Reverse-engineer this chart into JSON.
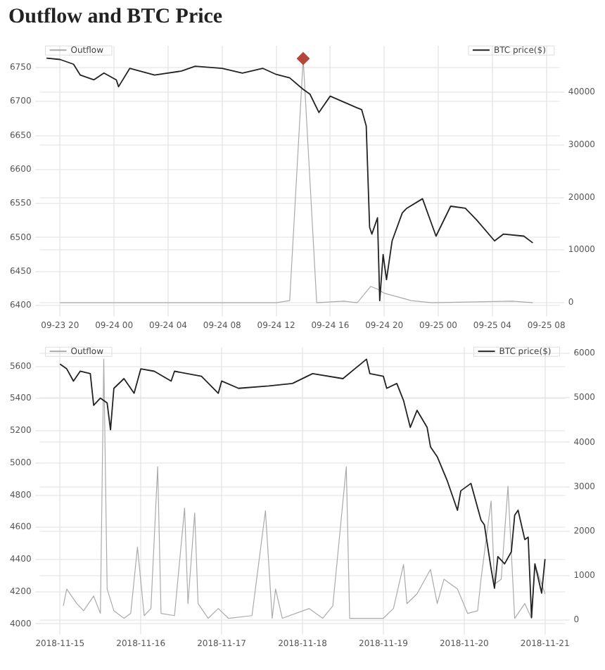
{
  "chart_data": [
    {
      "type": "line",
      "title": "Outflow and BTC Price",
      "legend": "top",
      "grid": true,
      "marker": "none",
      "line_style": "solid",
      "xlim": [
        "--09-23T18:30",
        "--09-25T09:00"
      ],
      "xticks": [
        {
          "value": "--09-23T20:00",
          "label": "09-23 20"
        },
        {
          "value": "--09-24T00:00",
          "label": "09-24 00"
        },
        {
          "value": "--09-24T04:00",
          "label": "09-24 04"
        },
        {
          "value": "--09-24T08:00",
          "label": "09-24 08"
        },
        {
          "value": "--09-24T12:00",
          "label": "09-24 12"
        },
        {
          "value": "--09-24T16:00",
          "label": "09-24 16"
        },
        {
          "value": "--09-24T20:00",
          "label": "09-24 20"
        },
        {
          "value": "--09-25T00:00",
          "label": "09-25 00"
        },
        {
          "value": "--09-25T04:00",
          "label": "09-25 04"
        },
        {
          "value": "--09-25T08:00",
          "label": "09-25 08"
        }
      ],
      "ylim": [
        6390,
        6782
      ],
      "yticks": [
        6400,
        6450,
        6500,
        6550,
        6600,
        6650,
        6700,
        6750
      ],
      "y2lim": [
        -1800,
        48800
      ],
      "y2ticks": [
        0,
        10000,
        20000,
        30000,
        40000
      ],
      "series": [
        {
          "name": "Outflow",
          "axis": "y2",
          "color": "#aaaaaa",
          "x": [
            "--09-23T20:00",
            "--09-24T12:00",
            "--09-24T13:00",
            "--09-24T14:00",
            "--09-24T15:00",
            "--09-24T17:00",
            "--09-24T18:00",
            "--09-24T19:00",
            "--09-24T19:30",
            "--09-24T20:00",
            "--09-24T22:00",
            "--09-24T23:30",
            "--09-25T05:30",
            "--09-25T07:00"
          ],
          "values": [
            0,
            0,
            400,
            46400,
            0,
            300,
            0,
            3100,
            2600,
            1800,
            400,
            0,
            300,
            0
          ]
        },
        {
          "name": "BTC price($)",
          "axis": "y",
          "color": "#222222",
          "x": [
            "--09-23T19:00",
            "--09-23T20:00",
            "--09-23T21:00",
            "--09-23T21:30",
            "--09-23T22:30",
            "--09-23T23:15",
            "--09-24T00:10",
            "--09-24T00:20",
            "--09-24T01:10",
            "--09-24T03:00",
            "--09-24T05:00",
            "--09-24T06:00",
            "--09-24T08:00",
            "--09-24T09:30",
            "--09-24T11:00",
            "--09-24T12:00",
            "--09-24T13:00",
            "--09-24T14:00",
            "--09-24T14:30",
            "--09-24T15:10",
            "--09-24T16:00",
            "--09-24T17:30",
            "--09-24T18:20",
            "--09-24T18:40",
            "--09-24T18:55",
            "--09-24T19:05",
            "--09-24T19:30",
            "--09-24T19:40",
            "--09-24T19:55",
            "--09-24T20:10",
            "--09-24T20:35",
            "--09-24T21:20",
            "--09-24T21:40",
            "--09-24T22:50",
            "--09-24T23:50",
            "--09-25T00:55",
            "--09-25T02:00",
            "--09-25T02:50",
            "--09-25T04:10",
            "--09-25T04:50",
            "--09-25T06:20",
            "--09-25T07:00"
          ],
          "values": [
            6764,
            6762,
            6755,
            6739,
            6732,
            6742,
            6732,
            6722,
            6749,
            6739,
            6745,
            6752,
            6749,
            6742,
            6749,
            6740,
            6735,
            6718,
            6711,
            6684,
            6708,
            6695,
            6688,
            6664,
            6515,
            6505,
            6529,
            6407,
            6475,
            6438,
            6495,
            6536,
            6543,
            6557,
            6502,
            6546,
            6543,
            6526,
            6495,
            6505,
            6502,
            6492
          ]
        },
        {
          "type": "scatter",
          "marker": "diamond",
          "axis": "y2",
          "color": "#b5473a",
          "x": [
            "--09-24T14:00"
          ],
          "values": [
            46400
          ]
        }
      ]
    },
    {
      "type": "line",
      "legend": "top",
      "grid": true,
      "marker": "none",
      "line_style": "solid",
      "xlim": [
        "2018-11-14T18:00",
        "2018-11-21T06:00"
      ],
      "xticks": [
        "2018-11-15",
        "2018-11-16",
        "2018-11-17",
        "2018-11-18",
        "2018-11-19",
        "2018-11-20",
        "2018-11-21"
      ],
      "ylim": [
        3960,
        5720
      ],
      "yticks": [
        4000,
        4200,
        4400,
        4600,
        4800,
        5000,
        5200,
        5400,
        5600
      ],
      "y2lim": [
        -230,
        6140
      ],
      "y2ticks": [
        0,
        1000,
        2000,
        3000,
        4000,
        5000,
        6000
      ],
      "series": [
        {
          "name": "Outflow",
          "axis": "y2",
          "color": "#aaaaaa",
          "x": [
            "2018-11-15T01:00",
            "2018-11-15T02:00",
            "2018-11-15T05:00",
            "2018-11-15T07:00",
            "2018-11-15T09:00",
            "2018-11-15T10:00",
            "2018-11-15T12:00",
            "2018-11-15T13:00",
            "2018-11-15T14:00",
            "2018-11-15T16:00",
            "2018-11-15T19:00",
            "2018-11-15T21:00",
            "2018-11-15T23:00",
            "2018-11-16T01:00",
            "2018-11-16T03:00",
            "2018-11-16T05:00",
            "2018-11-16T06:00",
            "2018-11-16T10:00",
            "2018-11-16T13:00",
            "2018-11-16T14:00",
            "2018-11-16T16:00",
            "2018-11-16T17:00",
            "2018-11-16T20:00",
            "2018-11-16T23:00",
            "2018-11-17T02:00",
            "2018-11-17T09:00",
            "2018-11-17T13:00",
            "2018-11-17T15:00",
            "2018-11-17T16:00",
            "2018-11-17T18:00",
            "2018-11-18T02:00",
            "2018-11-18T06:00",
            "2018-11-18T09:00",
            "2018-11-18T13:00",
            "2018-11-18T14:00",
            "2018-11-19T00:00",
            "2018-11-19T03:00",
            "2018-11-19T06:00",
            "2018-11-19T07:00",
            "2018-11-19T10:00",
            "2018-11-19T14:00",
            "2018-11-19T16:00",
            "2018-11-19T18:00",
            "2018-11-19T20:00",
            "2018-11-19T22:00",
            "2018-11-20T01:00",
            "2018-11-20T04:00",
            "2018-11-20T05:00",
            "2018-11-20T08:00",
            "2018-11-20T09:00",
            "2018-11-20T11:00",
            "2018-11-20T13:00",
            "2018-11-20T15:00",
            "2018-11-20T18:00",
            "2018-11-20T20:00",
            "2018-11-20T21:00",
            "2018-11-21T00:00"
          ],
          "values": [
            320,
            700,
            370,
            210,
            430,
            540,
            150,
            5870,
            700,
            210,
            40,
            150,
            1640,
            100,
            260,
            3450,
            150,
            100,
            2520,
            370,
            2410,
            370,
            40,
            260,
            40,
            100,
            2460,
            40,
            700,
            40,
            260,
            40,
            320,
            3450,
            40,
            40,
            260,
            1250,
            370,
            590,
            1140,
            370,
            920,
            810,
            700,
            150,
            210,
            920,
            2680,
            810,
            920,
            3010,
            40,
            370,
            40,
            1250,
            590
          ]
        },
        {
          "name": "BTC price($)",
          "axis": "y",
          "color": "#222222",
          "x": [
            "2018-11-15T00:00",
            "2018-11-15T02:00",
            "2018-11-15T04:00",
            "2018-11-15T06:00",
            "2018-11-15T09:00",
            "2018-11-15T10:00",
            "2018-11-15T12:00",
            "2018-11-15T14:00",
            "2018-11-15T15:00",
            "2018-11-15T16:00",
            "2018-11-15T19:00",
            "2018-11-15T22:00",
            "2018-11-16T00:00",
            "2018-11-16T04:00",
            "2018-11-16T09:00",
            "2018-11-16T10:00",
            "2018-11-16T18:00",
            "2018-11-16T23:00",
            "2018-11-17T00:00",
            "2018-11-17T05:00",
            "2018-11-17T14:00",
            "2018-11-17T21:00",
            "2018-11-18T03:00",
            "2018-11-18T12:00",
            "2018-11-18T19:00",
            "2018-11-18T20:00",
            "2018-11-19T00:00",
            "2018-11-19T01:00",
            "2018-11-19T04:00",
            "2018-11-19T06:00",
            "2018-11-19T08:00",
            "2018-11-19T10:00",
            "2018-11-19T13:00",
            "2018-11-19T14:00",
            "2018-11-19T16:00",
            "2018-11-19T19:00",
            "2018-11-19T22:00",
            "2018-11-19T23:00",
            "2018-11-20T02:00",
            "2018-11-20T03:00",
            "2018-11-20T05:00",
            "2018-11-20T06:00",
            "2018-11-20T08:00",
            "2018-11-20T09:00",
            "2018-11-20T10:00",
            "2018-11-20T12:00",
            "2018-11-20T14:00",
            "2018-11-20T15:00",
            "2018-11-20T16:00",
            "2018-11-20T18:00",
            "2018-11-20T19:00",
            "2018-11-20T20:00",
            "2018-11-20T21:00",
            "2018-11-20T23:00",
            "2018-11-21T00:00"
          ],
          "values": [
            5615,
            5585,
            5509,
            5570,
            5555,
            5358,
            5403,
            5373,
            5206,
            5464,
            5524,
            5433,
            5585,
            5570,
            5509,
            5570,
            5539,
            5433,
            5509,
            5464,
            5479,
            5494,
            5555,
            5524,
            5645,
            5555,
            5539,
            5464,
            5494,
            5388,
            5221,
            5327,
            5221,
            5100,
            5039,
            4888,
            4706,
            4827,
            4873,
            4797,
            4645,
            4615,
            4342,
            4221,
            4418,
            4373,
            4448,
            4676,
            4706,
            4524,
            4539,
            4039,
            4373,
            4191,
            4403
          ]
        }
      ]
    }
  ]
}
